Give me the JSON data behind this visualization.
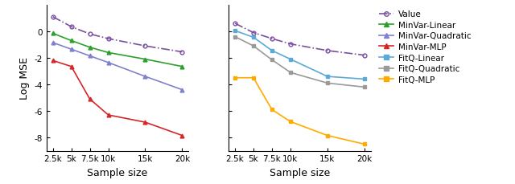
{
  "x_ticks": [
    2500,
    5000,
    7500,
    10000,
    15000,
    20000
  ],
  "x_tick_labels": [
    "2.5k",
    "5k",
    "7.5k",
    "10k",
    "15k",
    "20k"
  ],
  "xlabel": "Sample size",
  "ylabel": "Log MSE",
  "left": {
    "Value": [
      1.1,
      0.35,
      -0.2,
      -0.55,
      -1.1,
      -1.55
    ],
    "MinVar-Linear": [
      -0.15,
      -0.7,
      -1.2,
      -1.6,
      -2.1,
      -2.65
    ],
    "MinVar-Quadratic": [
      -0.85,
      -1.35,
      -1.85,
      -2.35,
      -3.4,
      -4.4
    ],
    "MinVar-MLP": [
      -2.2,
      -2.65,
      -5.1,
      -6.3,
      -6.85,
      -7.85
    ]
  },
  "right": {
    "Value": [
      0.6,
      -0.1,
      -0.55,
      -0.95,
      -1.45,
      -1.8
    ],
    "FitQ-Linear": [
      0.05,
      -0.45,
      -1.45,
      -2.1,
      -3.4,
      -3.6
    ],
    "FitQ-Quadratic": [
      -0.4,
      -1.1,
      -2.15,
      -3.1,
      -3.9,
      -4.2
    ],
    "FitQ-MLP": [
      -3.5,
      -3.5,
      -5.9,
      -6.8,
      -7.85,
      -8.5
    ]
  },
  "series_styles": {
    "Value": {
      "color": "#7b4f9e",
      "marker": "o",
      "linestyle": "-."
    },
    "MinVar-Linear": {
      "color": "#2ca02c",
      "marker": "^",
      "linestyle": "-"
    },
    "MinVar-Quadratic": {
      "color": "#8080d0",
      "marker": "^",
      "linestyle": "-"
    },
    "MinVar-MLP": {
      "color": "#d62728",
      "marker": "^",
      "linestyle": "-"
    },
    "FitQ-Linear": {
      "color": "#5baad5",
      "marker": "s",
      "linestyle": "-"
    },
    "FitQ-Quadratic": {
      "color": "#9a9a9a",
      "marker": "s",
      "linestyle": "-"
    },
    "FitQ-MLP": {
      "color": "#ffaa00",
      "marker": "s",
      "linestyle": "-"
    }
  },
  "ylim": [
    -9,
    2
  ],
  "yticks": [
    0,
    -2,
    -4,
    -6,
    -8
  ],
  "legend_order": [
    "Value",
    "MinVar-Linear",
    "MinVar-Quadratic",
    "MinVar-MLP",
    "FitQ-Linear",
    "FitQ-Quadratic",
    "FitQ-MLP"
  ],
  "fig_width": 6.4,
  "fig_height": 2.3,
  "dpi": 100
}
